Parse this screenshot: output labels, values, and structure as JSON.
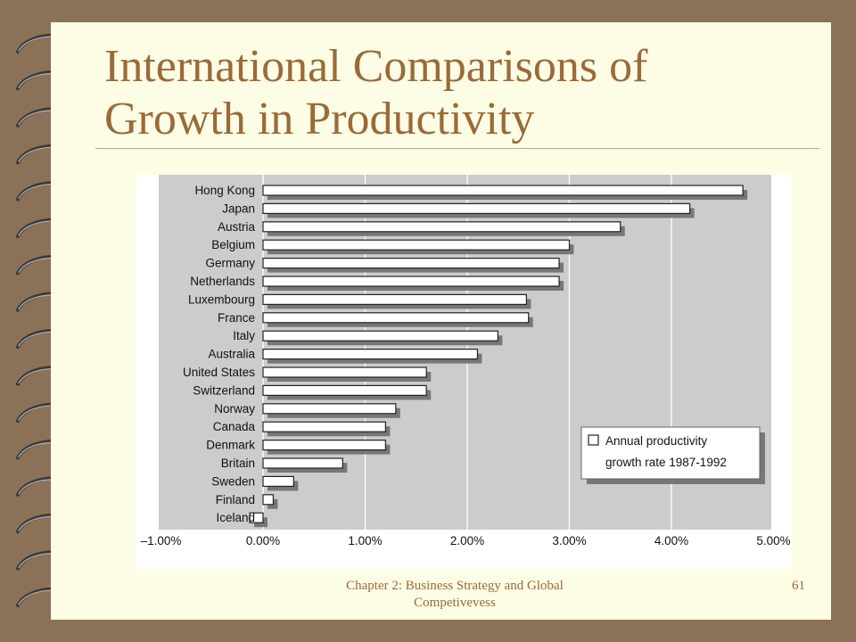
{
  "slide": {
    "title": "International Comparisons of Growth in Productivity",
    "footer": "Chapter 2: Business Strategy and Global Competivevess",
    "page_number": "61"
  },
  "colors": {
    "background": "#8b7157",
    "slide": "#fdfde6",
    "title": "#9a6a38",
    "plot_background": "#cccccc",
    "bar_fill": "#ffffff",
    "bar_shadow": "#777777"
  },
  "chart_data": {
    "type": "bar",
    "orientation": "horizontal",
    "title": "",
    "xlabel": "",
    "ylabel": "",
    "categories": [
      "Hong Kong",
      "Japan",
      "Austria",
      "Belgium",
      "Germany",
      "Netherlands",
      "Luxembourg",
      "France",
      "Italy",
      "Australia",
      "United States",
      "Switzerland",
      "Norway",
      "Canada",
      "Denmark",
      "Britain",
      "Sweden",
      "Finland",
      "Iceland"
    ],
    "series": [
      {
        "name": "Annual productivity growth rate 1987-1992",
        "values": [
          4.7,
          4.18,
          3.5,
          3.0,
          2.9,
          2.9,
          2.58,
          2.6,
          2.3,
          2.1,
          1.6,
          1.6,
          1.3,
          1.2,
          1.2,
          0.78,
          0.3,
          0.1,
          -0.13
        ]
      }
    ],
    "xlim": [
      -1,
      5
    ],
    "xticks": [
      -1,
      0,
      1,
      2,
      3,
      4,
      5
    ],
    "xtick_labels": [
      "–1.00%",
      "0.00%",
      "1.00%",
      "2.00%",
      "3.00%",
      "4.00%",
      "5.00%"
    ],
    "grid": true,
    "legend": {
      "position": "bottom-right",
      "label_lines": [
        "Annual productivity",
        "growth rate 1987-1992"
      ]
    }
  }
}
